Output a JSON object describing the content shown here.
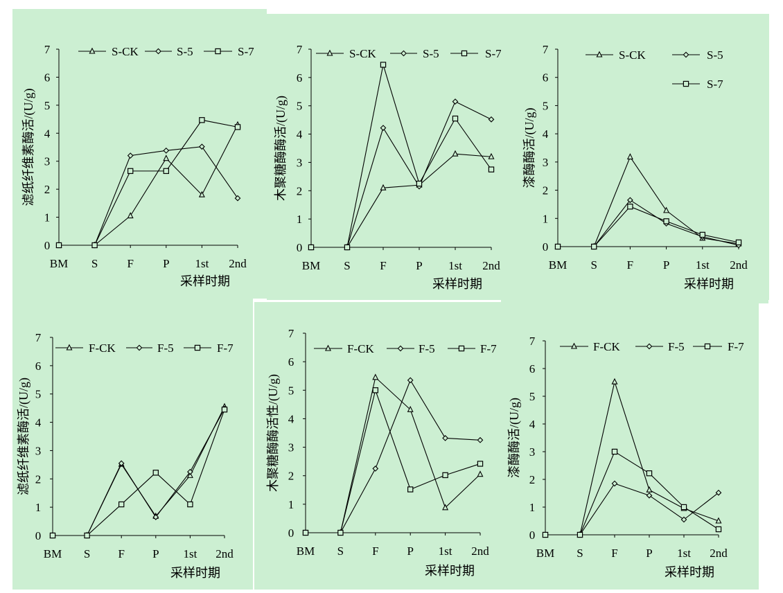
{
  "background_color": "#ccefd2",
  "line_color": "#000000",
  "chart_data": [
    {
      "type": "line",
      "ylabel": "滤纸纤维素酶活/(U/g)",
      "xlabel": "采样时期",
      "categories": [
        "BM",
        "S",
        "F",
        "P",
        "1st",
        "2nd"
      ],
      "yticks": [
        "0",
        "1",
        "2",
        "3",
        "4",
        "5",
        "6",
        "7"
      ],
      "ylim": [
        0,
        7
      ],
      "legend_position": "top",
      "series": [
        {
          "name": "S-CK",
          "marker": "triangle",
          "values": [
            0,
            0,
            1.05,
            3.1,
            1.8,
            4.3
          ]
        },
        {
          "name": "S-5",
          "marker": "diamond",
          "values": [
            0,
            0,
            3.2,
            3.38,
            3.52,
            1.68
          ]
        },
        {
          "name": "S-7",
          "marker": "square",
          "values": [
            0,
            0,
            2.65,
            2.65,
            4.47,
            4.22
          ]
        }
      ]
    },
    {
      "type": "line",
      "ylabel": "木聚糖酶酶活/(U/g)",
      "xlabel": "采样时期",
      "categories": [
        "BM",
        "S",
        "F",
        "P",
        "1st",
        "2nd"
      ],
      "yticks": [
        "0",
        "1",
        "2",
        "3",
        "4",
        "5",
        "6",
        "7"
      ],
      "ylim": [
        0,
        7
      ],
      "legend_position": "top",
      "series": [
        {
          "name": "S-CK",
          "marker": "triangle",
          "values": [
            0,
            0,
            2.1,
            2.2,
            3.3,
            3.2
          ]
        },
        {
          "name": "S-5",
          "marker": "diamond",
          "values": [
            0,
            0,
            4.22,
            2.15,
            5.15,
            4.52
          ]
        },
        {
          "name": "S-7",
          "marker": "square",
          "values": [
            0,
            0,
            6.45,
            2.25,
            4.55,
            2.75
          ]
        }
      ]
    },
    {
      "type": "line",
      "ylabel": "漆酶酶活/(U/g)",
      "xlabel": "采样时期",
      "categories": [
        "BM",
        "S",
        "F",
        "P",
        "1st",
        "2nd"
      ],
      "yticks": [
        "0",
        "1",
        "2",
        "3",
        "4",
        "5",
        "6",
        "7"
      ],
      "ylim": [
        0,
        7
      ],
      "legend_position": "top-right",
      "series": [
        {
          "name": "S-CK",
          "marker": "triangle",
          "values": [
            0,
            0,
            3.18,
            1.28,
            0.3,
            0.1
          ]
        },
        {
          "name": "S-5",
          "marker": "diamond",
          "values": [
            0,
            0,
            1.65,
            0.82,
            0.35,
            0.05
          ]
        },
        {
          "name": "S-7",
          "marker": "square",
          "values": [
            0,
            0,
            1.42,
            0.9,
            0.42,
            0.15
          ]
        }
      ]
    },
    {
      "type": "line",
      "ylabel": "滤纸纤维素酶活/(U/g)",
      "xlabel": "采样时期",
      "categories": [
        "BM",
        "S",
        "F",
        "P",
        "1st",
        "2nd"
      ],
      "yticks": [
        "0",
        "1",
        "2",
        "3",
        "4",
        "5",
        "6",
        "7"
      ],
      "ylim": [
        0,
        7
      ],
      "legend_position": "top",
      "series": [
        {
          "name": "F-CK",
          "marker": "triangle",
          "values": [
            0,
            0,
            2.52,
            0.68,
            2.12,
            4.55
          ]
        },
        {
          "name": "F-5",
          "marker": "diamond",
          "values": [
            0,
            0,
            2.55,
            0.65,
            2.25,
            4.48
          ]
        },
        {
          "name": "F-7",
          "marker": "square",
          "values": [
            0,
            0,
            1.1,
            2.22,
            1.1,
            4.45
          ]
        }
      ]
    },
    {
      "type": "line",
      "ylabel": "木聚糖酶酶活性/(U/g)",
      "xlabel": "采样时期",
      "categories": [
        "BM",
        "S",
        "F",
        "P",
        "1st",
        "2nd"
      ],
      "yticks": [
        "0",
        "1",
        "2",
        "3",
        "4",
        "5",
        "6",
        "7"
      ],
      "ylim": [
        0,
        7
      ],
      "legend_position": "top",
      "series": [
        {
          "name": "F-CK",
          "marker": "triangle",
          "values": [
            0,
            0,
            5.45,
            4.32,
            0.88,
            2.05
          ]
        },
        {
          "name": "F-5",
          "marker": "diamond",
          "values": [
            0,
            0,
            2.25,
            5.35,
            3.32,
            3.25
          ]
        },
        {
          "name": "F-7",
          "marker": "square",
          "values": [
            0,
            0,
            5.0,
            1.52,
            2.02,
            2.42
          ]
        }
      ]
    },
    {
      "type": "line",
      "ylabel": "漆酶酶活/(U/g)",
      "xlabel": "采样时期",
      "categories": [
        "BM",
        "S",
        "F",
        "P",
        "1st",
        "2nd"
      ],
      "yticks": [
        "0",
        "1",
        "2",
        "3",
        "4",
        "5",
        "6",
        "7"
      ],
      "ylim": [
        0,
        7
      ],
      "legend_position": "top",
      "series": [
        {
          "name": "F-CK",
          "marker": "triangle",
          "values": [
            0,
            0,
            5.52,
            1.62,
            0.95,
            0.5
          ]
        },
        {
          "name": "F-5",
          "marker": "diamond",
          "values": [
            0,
            0,
            1.85,
            1.42,
            0.55,
            1.52
          ]
        },
        {
          "name": "F-7",
          "marker": "square",
          "values": [
            0,
            0,
            3.0,
            2.22,
            1.0,
            0.2
          ]
        }
      ]
    }
  ]
}
